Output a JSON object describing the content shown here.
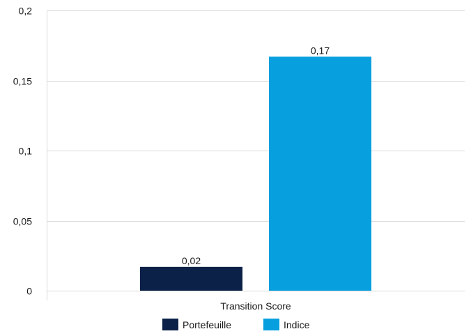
{
  "chart_data": {
    "type": "bar",
    "title": "",
    "xlabel": "",
    "ylabel": "",
    "categories": [
      "Transition Score"
    ],
    "series": [
      {
        "name": "Portefeuille",
        "values": [
          0.017
        ],
        "label": "0,02",
        "color": "#0b2147"
      },
      {
        "name": "Indice",
        "values": [
          0.167
        ],
        "label": "0,17",
        "color": "#089fde"
      }
    ],
    "ylim": [
      0,
      0.2
    ],
    "yticks": [
      0,
      0.05,
      0.1,
      0.15,
      0.2
    ],
    "ytick_labels": [
      "0",
      "0,05",
      "0,1",
      "0,15",
      "0,2"
    ],
    "grid": true,
    "gridline_color": "#d9d9d9",
    "legend_position": "bottom"
  }
}
